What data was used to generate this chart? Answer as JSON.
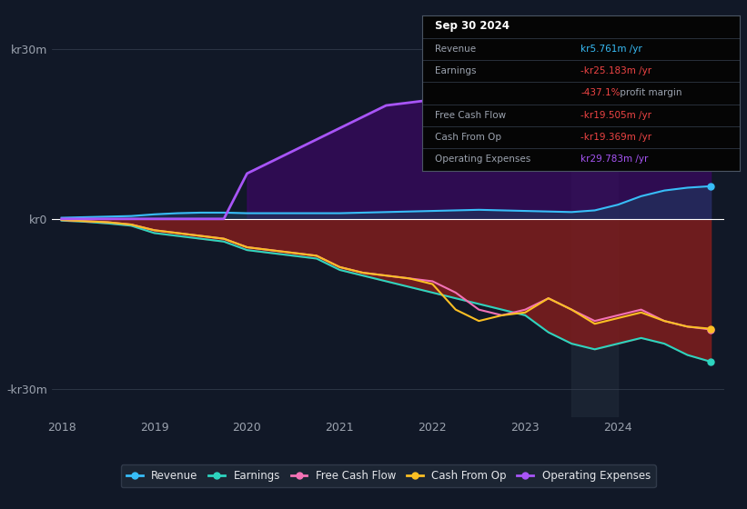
{
  "background_color": "#111827",
  "plot_bg_color": "#111827",
  "grid_color": "#374151",
  "years": [
    2018.0,
    2018.25,
    2018.5,
    2018.75,
    2019.0,
    2019.25,
    2019.5,
    2019.75,
    2020.0,
    2020.25,
    2020.5,
    2020.75,
    2021.0,
    2021.25,
    2021.5,
    2021.75,
    2022.0,
    2022.25,
    2022.5,
    2022.75,
    2023.0,
    2023.25,
    2023.5,
    2023.75,
    2024.0,
    2024.25,
    2024.5,
    2024.75,
    2025.0
  ],
  "revenue": [
    0.2,
    0.3,
    0.4,
    0.5,
    0.8,
    1.0,
    1.1,
    1.1,
    1.0,
    1.0,
    1.0,
    1.0,
    1.0,
    1.1,
    1.2,
    1.3,
    1.4,
    1.5,
    1.6,
    1.5,
    1.4,
    1.3,
    1.2,
    1.5,
    2.5,
    4.0,
    5.0,
    5.5,
    5.761
  ],
  "earnings": [
    -0.3,
    -0.5,
    -0.8,
    -1.2,
    -2.5,
    -3.0,
    -3.5,
    -4.0,
    -5.5,
    -6.0,
    -6.5,
    -7.0,
    -9.0,
    -10.0,
    -11.0,
    -12.0,
    -13.0,
    -14.0,
    -15.0,
    -16.0,
    -17.0,
    -20.0,
    -22.0,
    -23.0,
    -22.0,
    -21.0,
    -22.0,
    -24.0,
    -25.183
  ],
  "free_cash_flow": [
    -0.2,
    -0.4,
    -0.6,
    -1.0,
    -2.0,
    -2.5,
    -3.0,
    -3.5,
    -5.0,
    -5.5,
    -6.0,
    -6.5,
    -8.5,
    -9.5,
    -10.0,
    -10.5,
    -11.0,
    -13.0,
    -16.0,
    -17.0,
    -16.0,
    -14.0,
    -16.0,
    -18.0,
    -17.0,
    -16.0,
    -18.0,
    -19.0,
    -19.505
  ],
  "cash_from_op": [
    -0.2,
    -0.4,
    -0.6,
    -1.0,
    -2.0,
    -2.5,
    -3.0,
    -3.5,
    -5.0,
    -5.5,
    -6.0,
    -6.5,
    -8.5,
    -9.5,
    -10.0,
    -10.5,
    -11.5,
    -16.0,
    -18.0,
    -17.0,
    -16.5,
    -14.0,
    -16.0,
    -18.5,
    -17.5,
    -16.5,
    -18.0,
    -19.0,
    -19.369
  ],
  "op_expenses": [
    0.0,
    0.0,
    0.0,
    0.0,
    0.0,
    0.0,
    0.0,
    0.0,
    8.0,
    10.0,
    12.0,
    14.0,
    16.0,
    18.0,
    20.0,
    20.5,
    21.0,
    23.0,
    25.0,
    26.0,
    27.5,
    28.0,
    25.5,
    22.0,
    20.0,
    22.0,
    26.0,
    28.5,
    29.783
  ],
  "revenue_color": "#38bdf8",
  "earnings_color": "#2dd4bf",
  "fcf_color": "#f472b6",
  "cashop_color": "#fbbf24",
  "opex_color": "#a855f7",
  "revenue_fill": "#1e3a5f",
  "earnings_fill": "#7f1d1d",
  "opex_fill": "#3b0764",
  "highlight_x_start": 2023.5,
  "highlight_x_end": 2024.0,
  "ylim": [
    -35,
    35
  ],
  "yticks": [
    -30,
    0,
    30
  ],
  "ytick_labels": [
    "-kr30m",
    "kr0",
    "kr30m"
  ],
  "xtick_positions": [
    2018,
    2019,
    2020,
    2021,
    2022,
    2023,
    2024
  ],
  "legend_items": [
    {
      "label": "Revenue",
      "color": "#38bdf8"
    },
    {
      "label": "Earnings",
      "color": "#2dd4bf"
    },
    {
      "label": "Free Cash Flow",
      "color": "#f472b6"
    },
    {
      "label": "Cash From Op",
      "color": "#fbbf24"
    },
    {
      "label": "Operating Expenses",
      "color": "#a855f7"
    }
  ],
  "info_box": {
    "date": "Sep 30 2024",
    "rows": [
      {
        "label": "Revenue",
        "value": "kr5.761m /yr",
        "value_color": "#38bdf8",
        "sub_value": ""
      },
      {
        "label": "Earnings",
        "value": "-kr25.183m /yr",
        "value_color": "#ef4444",
        "sub_value": "-437.1% profit margin"
      },
      {
        "label": "Free Cash Flow",
        "value": "-kr19.505m /yr",
        "value_color": "#ef4444",
        "sub_value": ""
      },
      {
        "label": "Cash From Op",
        "value": "-kr19.369m /yr",
        "value_color": "#ef4444",
        "sub_value": ""
      },
      {
        "label": "Operating Expenses",
        "value": "kr29.783m /yr",
        "value_color": "#a855f7",
        "sub_value": ""
      }
    ]
  }
}
